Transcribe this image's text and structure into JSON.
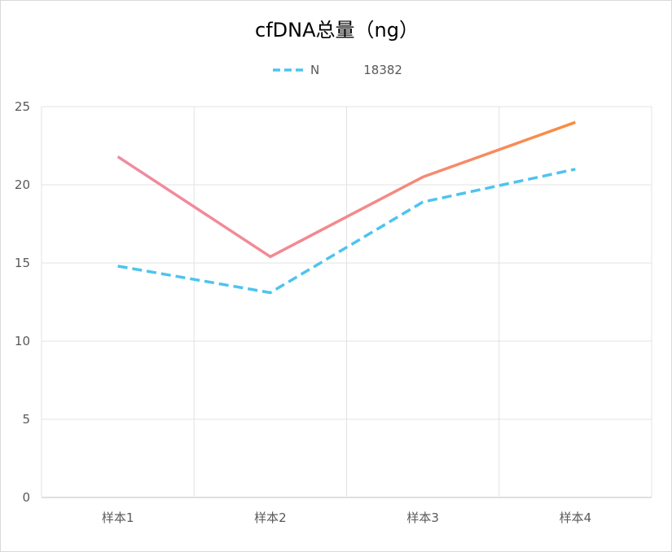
{
  "chart_data": {
    "type": "line",
    "title": "cfDNA总量（ng）",
    "categories": [
      "样本1",
      "样本2",
      "样本3",
      "样本4"
    ],
    "series": [
      {
        "name": "N",
        "values": [
          14.8,
          13.1,
          18.9,
          21.0
        ],
        "color": "#4dc4ef",
        "dash": true
      },
      {
        "name": "18382",
        "values": [
          21.8,
          15.4,
          20.5,
          24.0
        ],
        "color_start": "#f08aa2",
        "color_end": "#fa8c3c",
        "dash": false
      }
    ],
    "ylim": [
      0,
      25
    ],
    "yticks": [
      "0",
      "5",
      "10",
      "15",
      "20",
      "25"
    ],
    "grid": true,
    "legend": "top"
  }
}
